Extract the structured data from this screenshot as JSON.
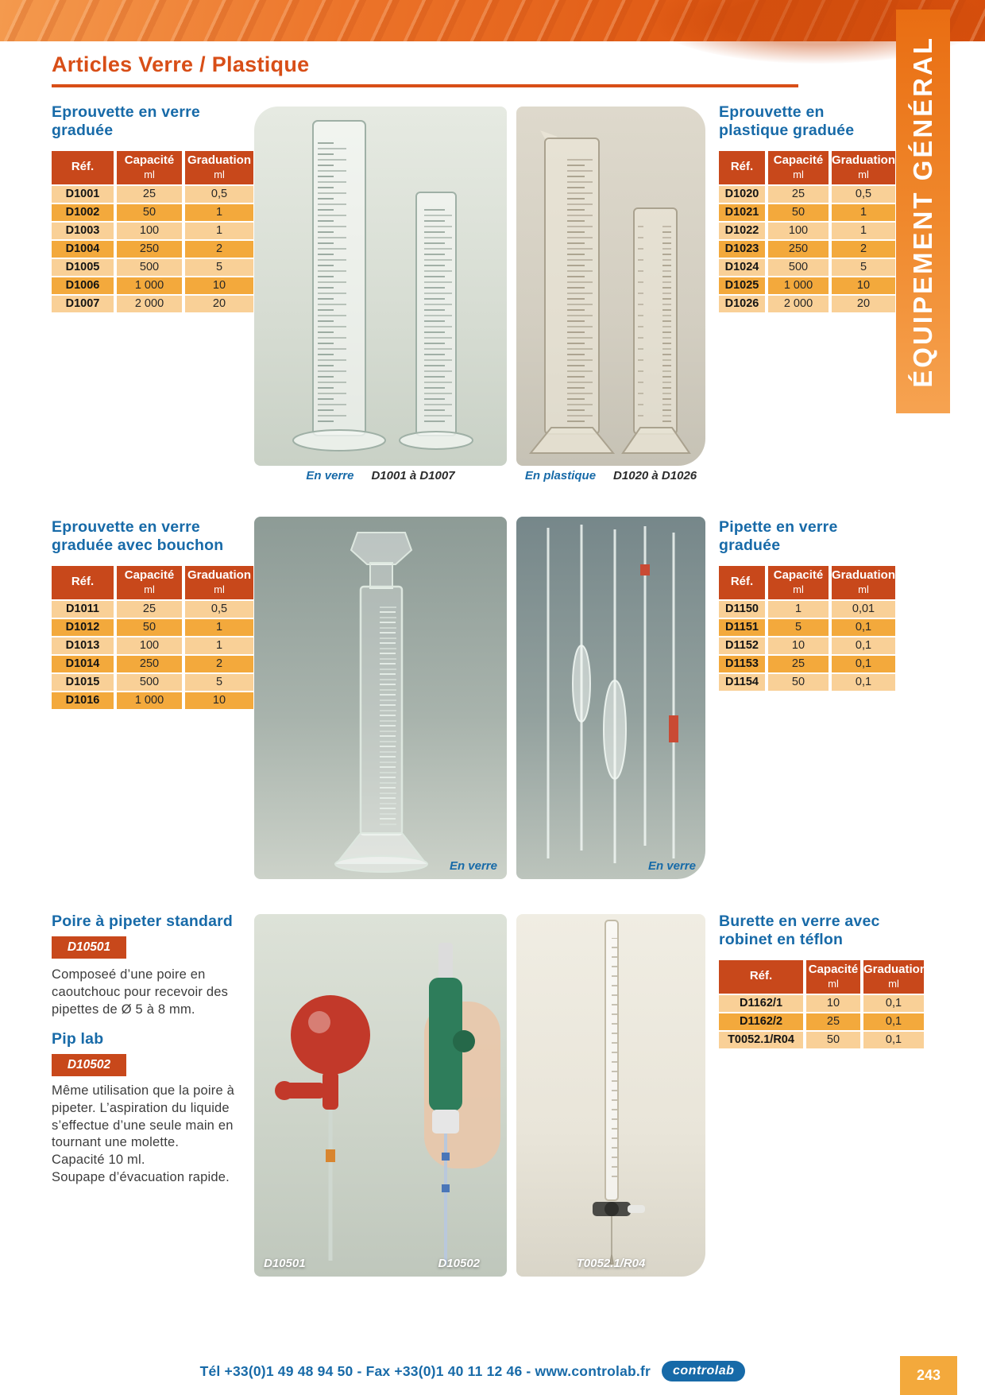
{
  "page": {
    "title": "Articles Verre / Plastique",
    "sidebar_text": "ÉQUIPEMENT GÉNÉRAL",
    "page_number": "243",
    "footer_text": "Tél +33(0)1 49 48 94 50 - Fax +33(0)1 40 11 12 46 - www.controlab.fr",
    "footer_logo": "controlab"
  },
  "colors": {
    "accent_orange": "#d84e17",
    "table_header_red": "#c8481b",
    "row_light": "#f9d097",
    "row_dark": "#f3a93c",
    "heading_blue": "#176aa8",
    "page_box_orange": "#f3a93c"
  },
  "table_headers": {
    "ref": "Réf.",
    "capacity": "Capacité",
    "graduation": "Graduation",
    "unit": "ml"
  },
  "sections": {
    "glass_cylinder": {
      "title_lines": [
        "Eprouvette en verre",
        "graduée"
      ],
      "rows": [
        {
          "ref": "D1001",
          "cap": "25",
          "grad": "0,5"
        },
        {
          "ref": "D1002",
          "cap": "50",
          "grad": "1"
        },
        {
          "ref": "D1003",
          "cap": "100",
          "grad": "1"
        },
        {
          "ref": "D1004",
          "cap": "250",
          "grad": "2"
        },
        {
          "ref": "D1005",
          "cap": "500",
          "grad": "5"
        },
        {
          "ref": "D1006",
          "cap": "1 000",
          "grad": "10"
        },
        {
          "ref": "D1007",
          "cap": "2 000",
          "grad": "20"
        }
      ],
      "caption_material": "En verre",
      "caption_refs": "D1001 à D1007"
    },
    "plastic_cylinder": {
      "title_lines": [
        "Eprouvette en",
        "plastique graduée"
      ],
      "rows": [
        {
          "ref": "D1020",
          "cap": "25",
          "grad": "0,5"
        },
        {
          "ref": "D1021",
          "cap": "50",
          "grad": "1"
        },
        {
          "ref": "D1022",
          "cap": "100",
          "grad": "1"
        },
        {
          "ref": "D1023",
          "cap": "250",
          "grad": "2"
        },
        {
          "ref": "D1024",
          "cap": "500",
          "grad": "5"
        },
        {
          "ref": "D1025",
          "cap": "1 000",
          "grad": "10"
        },
        {
          "ref": "D1026",
          "cap": "2 000",
          "grad": "20"
        }
      ],
      "caption_material": "En plastique",
      "caption_refs": "D1020 à D1026"
    },
    "stoppered_cylinder": {
      "title_lines": [
        "Eprouvette en verre",
        "graduée avec bouchon"
      ],
      "rows": [
        {
          "ref": "D1011",
          "cap": "25",
          "grad": "0,5"
        },
        {
          "ref": "D1012",
          "cap": "50",
          "grad": "1"
        },
        {
          "ref": "D1013",
          "cap": "100",
          "grad": "1"
        },
        {
          "ref": "D1014",
          "cap": "250",
          "grad": "2"
        },
        {
          "ref": "D1015",
          "cap": "500",
          "grad": "5"
        },
        {
          "ref": "D1016",
          "cap": "1 000",
          "grad": "10"
        }
      ],
      "photo_caption": "En verre"
    },
    "glass_pipette": {
      "title_lines": [
        "Pipette en verre",
        "graduée"
      ],
      "rows": [
        {
          "ref": "D1150",
          "cap": "1",
          "grad": "0,01"
        },
        {
          "ref": "D1151",
          "cap": "5",
          "grad": "0,1"
        },
        {
          "ref": "D1152",
          "cap": "10",
          "grad": "0,1"
        },
        {
          "ref": "D1153",
          "cap": "25",
          "grad": "0,1"
        },
        {
          "ref": "D1154",
          "cap": "50",
          "grad": "0,1"
        }
      ],
      "photo_caption": "En verre"
    },
    "pipette_bulb": {
      "title": "Poire à pipeter standard",
      "badge": "D10501",
      "description": "Composeé d’une poire en caoutchouc pour recevoir des pipettes de Ø 5 à 8 mm."
    },
    "pip_lab": {
      "title": "Pip lab",
      "badge": "D10502",
      "description_lines": [
        "Même utilisation que la poire à pipeter. L’aspiration du liquide s’effectue d’une seule main en tournant une molette.",
        "Capacité 10 ml.",
        "Soupape d’évacuation rapide."
      ]
    },
    "burette": {
      "title_lines": [
        "Burette en verre avec",
        "robinet en téflon"
      ],
      "rows": [
        {
          "ref": "D1162/1",
          "cap": "10",
          "grad": "0,1"
        },
        {
          "ref": "D1162/2",
          "cap": "25",
          "grad": "0,1"
        },
        {
          "ref": "T0052.1/R04",
          "cap": "50",
          "grad": "0,1"
        }
      ]
    }
  },
  "photo_labels": {
    "d10501": "D10501",
    "d10502": "D10502",
    "t0052": "T0052.1/R04"
  }
}
